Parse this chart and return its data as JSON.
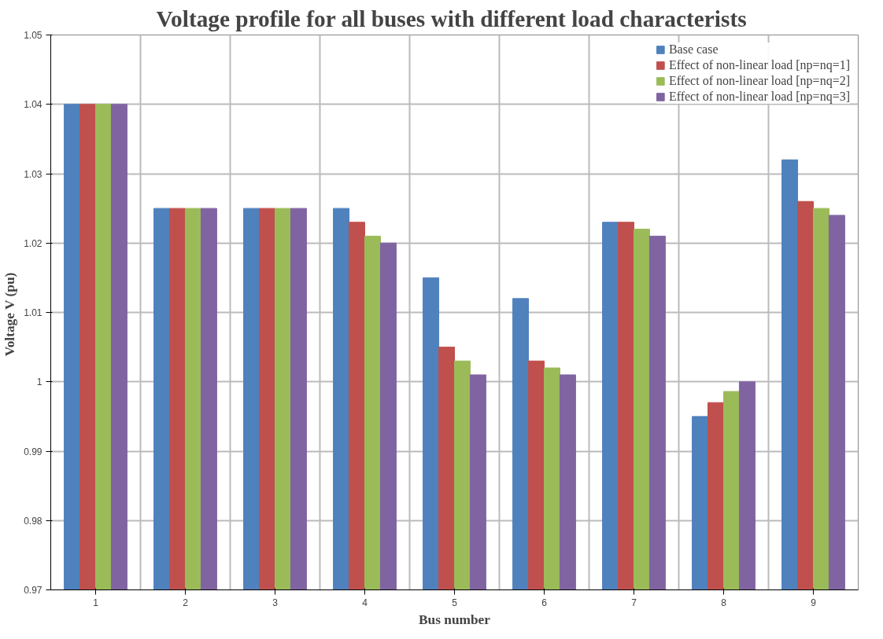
{
  "chart_data": {
    "type": "bar",
    "title": "Voltage profile for all buses  with different load characterists",
    "xlabel": "Bus number",
    "ylabel": "Voltage  V (pu)",
    "categories": [
      "1",
      "2",
      "3",
      "4",
      "5",
      "6",
      "7",
      "8",
      "9"
    ],
    "series": [
      {
        "name": "Base case",
        "color": "#4f81bd",
        "values": [
          1.04,
          1.025,
          1.025,
          1.025,
          1.015,
          1.012,
          1.023,
          0.995,
          1.032
        ]
      },
      {
        "name": "Effect of non-linear load [np=nq=1]",
        "color": "#c0504d",
        "values": [
          1.04,
          1.025,
          1.025,
          1.023,
          1.005,
          1.003,
          1.023,
          0.997,
          1.026
        ]
      },
      {
        "name": "Effect of non-linear load [np=nq=2]",
        "color": "#9bbb59",
        "values": [
          1.04,
          1.025,
          1.025,
          1.021,
          1.003,
          1.002,
          1.022,
          0.9986,
          1.025
        ]
      },
      {
        "name": "Effect of non-linear load [np=nq=3]",
        "color": "#8064a2",
        "values": [
          1.04,
          1.025,
          1.025,
          1.02,
          1.001,
          1.001,
          1.021,
          1.0,
          1.024
        ]
      }
    ],
    "ylim": [
      0.97,
      1.05
    ],
    "yticks": [
      0.97,
      0.98,
      0.99,
      1,
      1.01,
      1.02,
      1.03,
      1.04,
      1.05
    ],
    "grid": true,
    "legend": "top right"
  }
}
